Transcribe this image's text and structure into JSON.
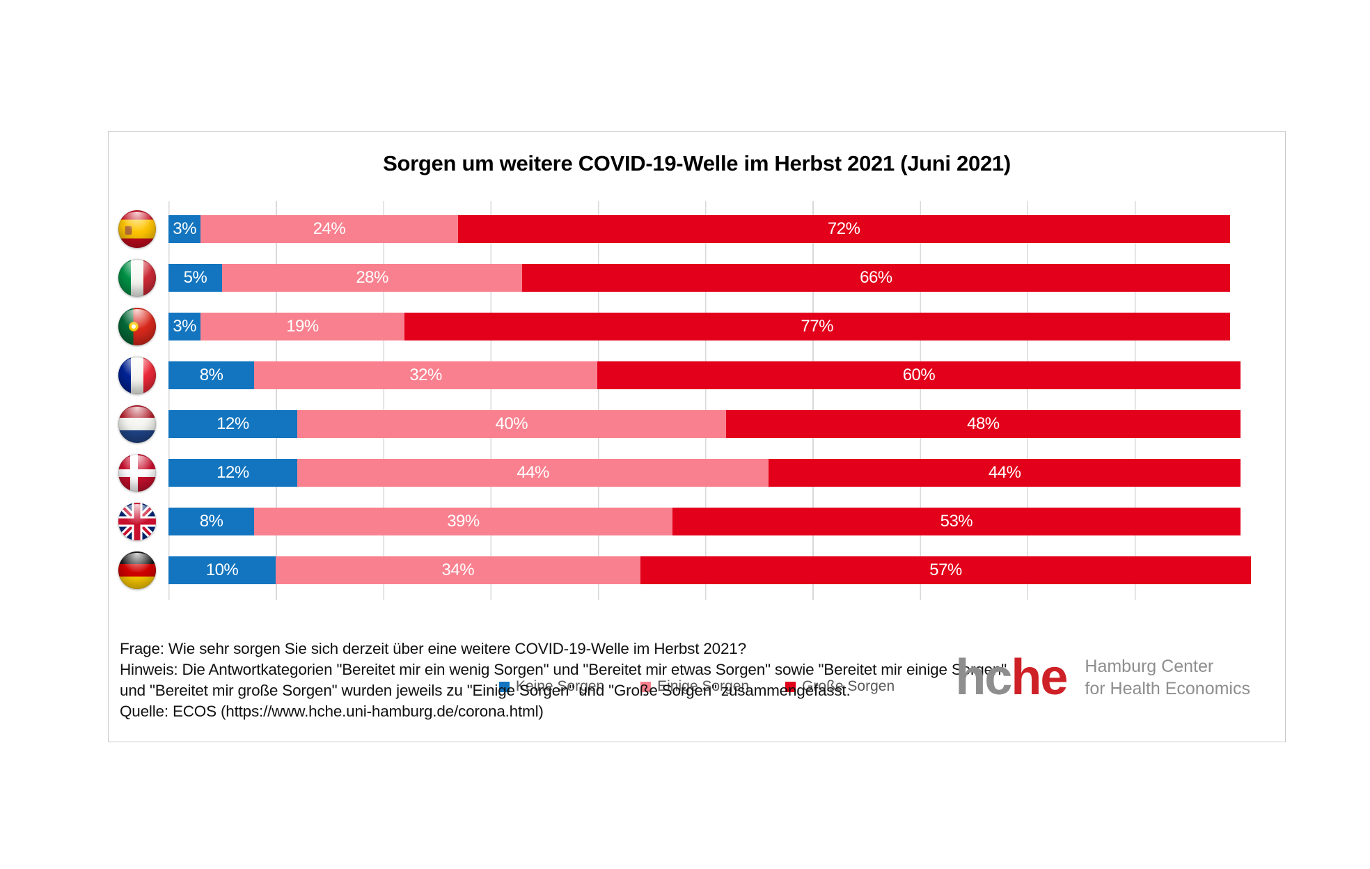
{
  "panel": {
    "title": "Sorgen um weitere COVID-19-Welle im Herbst 2021 (Juni 2021)"
  },
  "chart_data": {
    "type": "bar",
    "variant": "stacked-horizontal-100percent",
    "title": "Sorgen um weitere COVID-19-Welle im Herbst 2021 (Juni 2021)",
    "unit": "%",
    "categories": [
      "Spanien",
      "Italien",
      "Portugal",
      "Frankreich",
      "Niederlande",
      "Dänemark",
      "Vereinigtes Königreich",
      "Deutschland"
    ],
    "flags": [
      "es",
      "it",
      "pt",
      "fr",
      "nl",
      "dk",
      "gb",
      "de"
    ],
    "series": [
      {
        "name": "Keine Sorgen",
        "color": "#1375bf",
        "values": [
          3,
          5,
          3,
          8,
          12,
          12,
          8,
          10
        ]
      },
      {
        "name": "Einige Sorgen",
        "color": "#f9818f",
        "values": [
          24,
          28,
          19,
          32,
          40,
          44,
          39,
          34
        ]
      },
      {
        "name": "Große Sorgen",
        "color": "#e2001a",
        "values": [
          72,
          66,
          77,
          60,
          48,
          44,
          53,
          57
        ]
      }
    ],
    "xlim": [
      0,
      100
    ],
    "gridline_interval_percent": 10,
    "grid": true,
    "legend_position": "bottom"
  },
  "footer": {
    "frage": "Frage: Wie sehr sorgen Sie sich derzeit über eine weitere COVID-19-Welle im Herbst 2021?",
    "hinweis": "Hinweis: Die Antwortkategorien \"Bereitet mir ein wenig Sorgen\" und \"Bereitet mir etwas Sorgen\" sowie \"Bereitet mir einige Sorgen\" und \"Bereitet mir große Sorgen\" wurden jeweils zu \"Einige Sorgen\" und \"Große Sorgen\" zusammengefasst.",
    "quelle": "Quelle: ECOS (https://www.hche.uni-hamburg.de/corona.html)"
  },
  "logo": {
    "word_gray": "hc",
    "word_red": "he",
    "tagline_line1": "Hamburg Center",
    "tagline_line2": "for Health Economics"
  }
}
